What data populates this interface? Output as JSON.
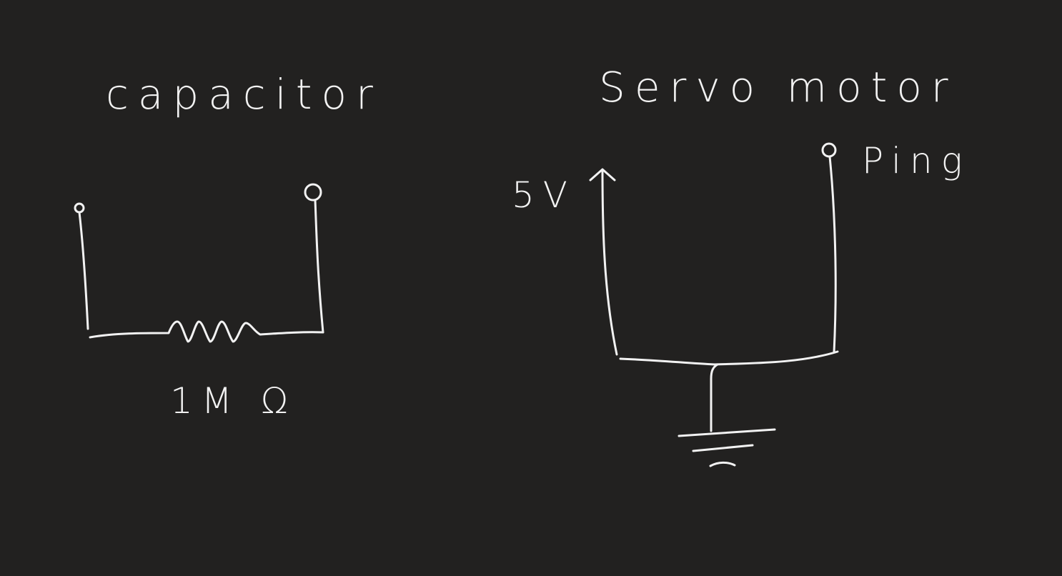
{
  "left_diagram": {
    "title": "capacitor",
    "resistor_label": "1M Ω"
  },
  "right_diagram": {
    "title": "Servo motor",
    "supply_label": "5V",
    "signal_label": "Ping"
  },
  "colors": {
    "background": "#222120",
    "ink": "#f2f2f2"
  }
}
